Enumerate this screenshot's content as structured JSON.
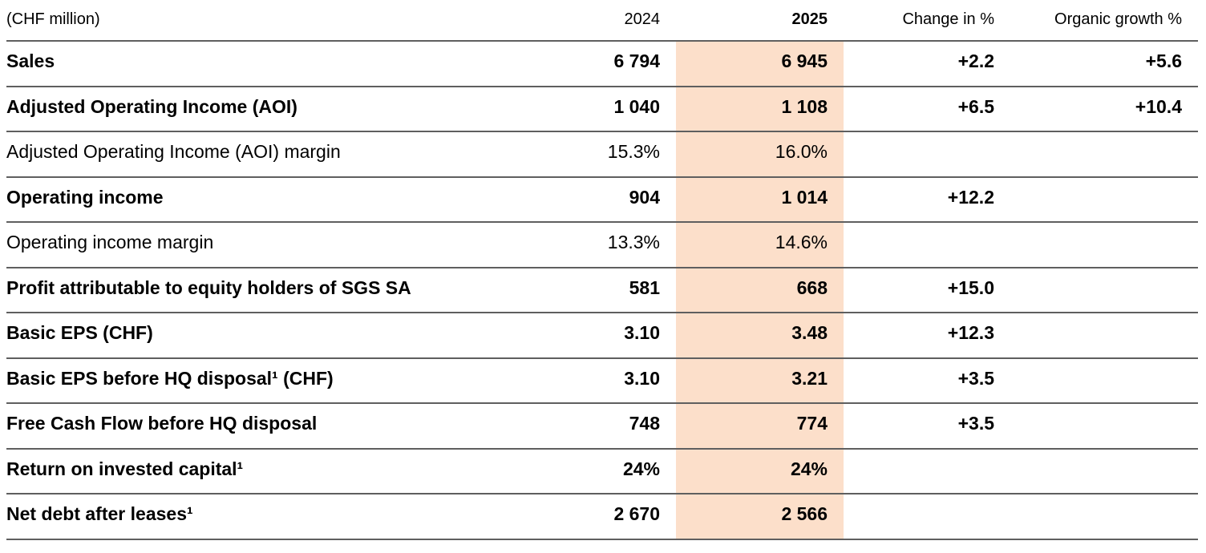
{
  "table": {
    "unit_label": "(CHF million)",
    "highlight_color": "#fcdfca",
    "line_color": "#5f5f5f",
    "columns": {
      "y2024": "2024",
      "y2025": "2025",
      "change": "Change in %",
      "organic": "Organic growth %"
    },
    "rows": [
      {
        "label": "Sales",
        "bold": true,
        "y2024": "6 794",
        "y2025": "6 945",
        "change": "+2.2",
        "organic": "+5.6"
      },
      {
        "label": "Adjusted Operating Income (AOI)",
        "bold": true,
        "y2024": "1 040",
        "y2025": "1 108",
        "change": "+6.5",
        "organic": "+10.4"
      },
      {
        "label": "Adjusted Operating Income (AOI) margin",
        "bold": false,
        "y2024": "15.3%",
        "y2025": "16.0%",
        "change": "",
        "organic": ""
      },
      {
        "label": "Operating income",
        "bold": true,
        "y2024": "904",
        "y2025": "1 014",
        "change": "+12.2",
        "organic": ""
      },
      {
        "label": "Operating income margin",
        "bold": false,
        "y2024": "13.3%",
        "y2025": "14.6%",
        "change": "",
        "organic": ""
      },
      {
        "label": "Profit attributable to equity holders of SGS SA",
        "bold": true,
        "y2024": "581",
        "y2025": "668",
        "change": "+15.0",
        "organic": ""
      },
      {
        "label": "Basic EPS (CHF)",
        "bold": true,
        "y2024": "3.10",
        "y2025": "3.48",
        "change": "+12.3",
        "organic": ""
      },
      {
        "label": "Basic EPS before HQ disposal¹ (CHF)",
        "bold": true,
        "y2024": "3.10",
        "y2025": "3.21",
        "change": "+3.5",
        "organic": ""
      },
      {
        "label": "Free Cash Flow before HQ disposal",
        "bold": true,
        "y2024": "748",
        "y2025": "774",
        "change": "+3.5",
        "organic": ""
      },
      {
        "label": "Return on invested capital¹",
        "bold": true,
        "y2024": "24%",
        "y2025": "24%",
        "change": "",
        "organic": ""
      },
      {
        "label": "Net debt after leases¹",
        "bold": true,
        "y2024": "2 670",
        "y2025": "2 566",
        "change": "",
        "organic": ""
      }
    ]
  }
}
